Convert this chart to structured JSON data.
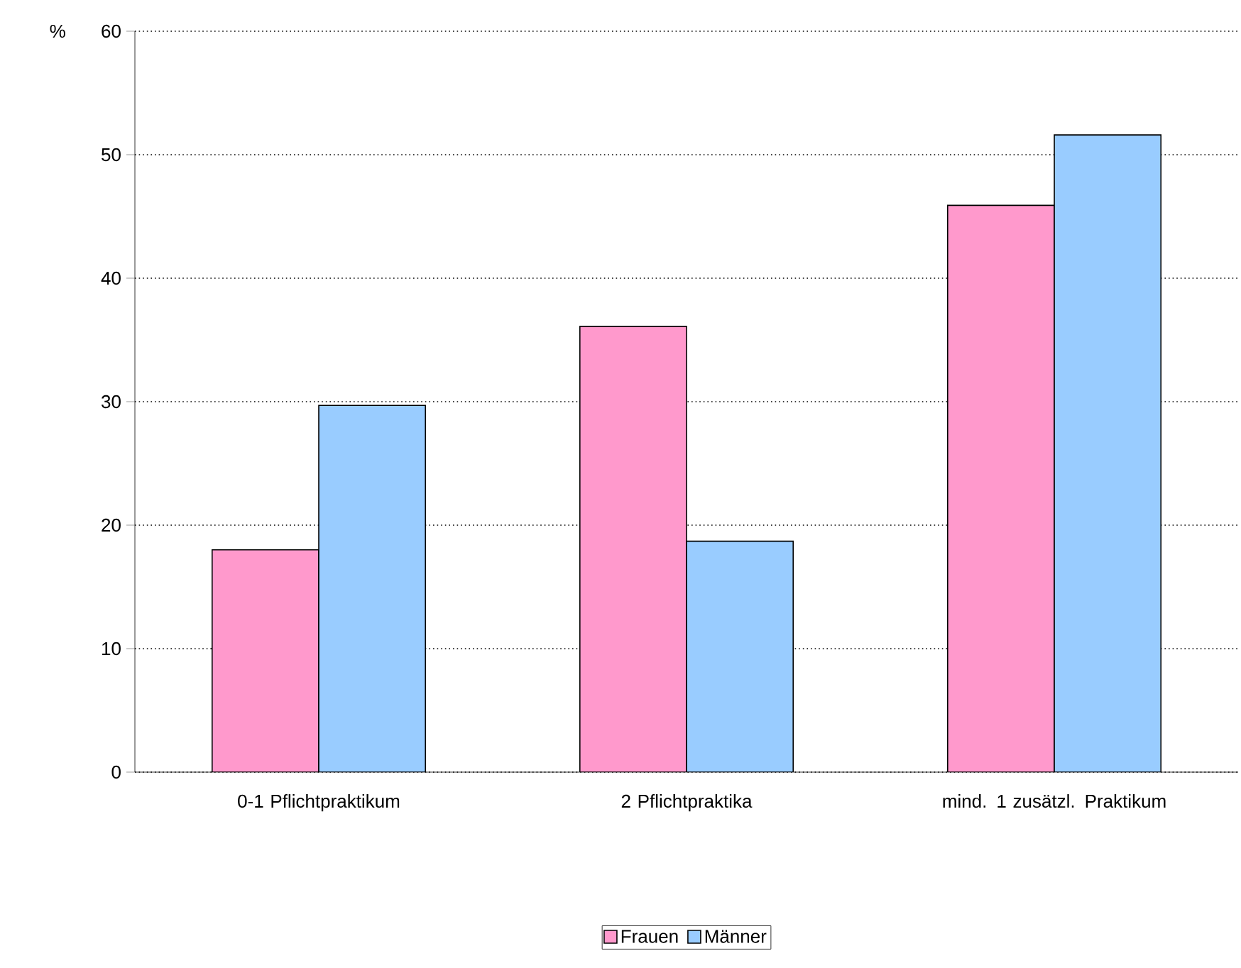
{
  "chart_data": {
    "type": "bar",
    "ylabel": "%",
    "categories": [
      "0-1 Pflichtpraktikum",
      "2 Pflichtpraktika",
      "mind. 1 zusätzl. Praktikum"
    ],
    "series": [
      {
        "name": "Frauen",
        "color": "#ff99cc",
        "values": [
          18.0,
          36.1,
          45.9
        ]
      },
      {
        "name": "Männer",
        "color": "#99ccff",
        "values": [
          29.7,
          18.7,
          51.6
        ]
      }
    ],
    "ylim": [
      0,
      60
    ],
    "yticks": [
      0,
      10,
      20,
      30,
      40,
      50,
      60
    ],
    "grid": "y",
    "legend": "bottom"
  }
}
